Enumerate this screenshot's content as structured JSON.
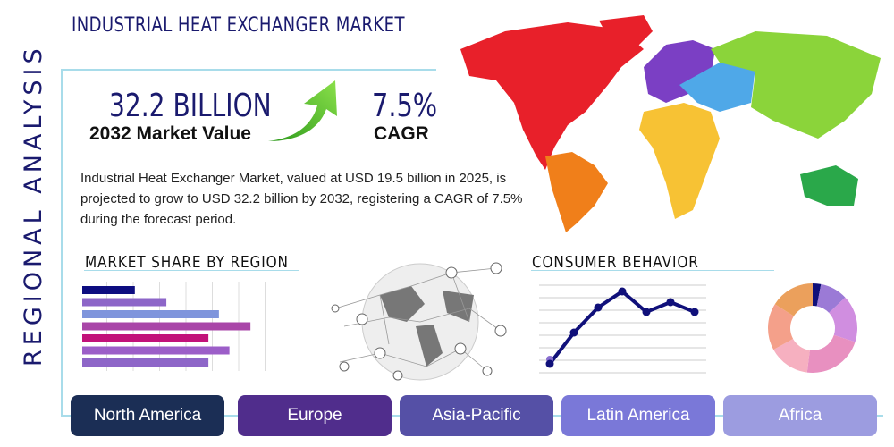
{
  "title": "INDUSTRIAL HEAT EXCHANGER MARKET",
  "side_label": "REGIONAL ANALYSIS",
  "market_value": {
    "value": "32.2 BILLION",
    "label": "2032 Market Value"
  },
  "cagr": {
    "value": "7.5%",
    "label": "CAGR"
  },
  "description": "Industrial Heat Exchanger Market, valued at USD 19.5 billion in 2025, is projected to grow to USD 32.2 billion by 2032, registering a CAGR of 7.5% during the forecast period.",
  "market_share": {
    "heading": "MARKET SHARE BY REGION",
    "bar_levels": [
      0.3,
      0.48,
      0.78,
      0.96,
      0.72,
      0.84,
      0.72
    ],
    "colors": [
      "#0d0d80",
      "#8d66c8",
      "#7f95dc",
      "#a946a8",
      "#c2127a",
      "#9c5ec8",
      "#8e66c8"
    ]
  },
  "consumer_behavior": {
    "heading": "CONSUMER BEHAVIOR",
    "line_levels": [
      0.1,
      0.45,
      0.73,
      0.91,
      0.68,
      0.79,
      0.68
    ],
    "donut_shares": [
      3,
      10,
      17,
      22,
      15,
      17,
      16
    ],
    "donut_colors": [
      "#10107a",
      "#9b7ad6",
      "#d08ee0",
      "#e890c0",
      "#f6b0c0",
      "#f4a08a",
      "#eba05c"
    ]
  },
  "regions": [
    {
      "label": "North America",
      "color": "#1b2e55"
    },
    {
      "label": "Europe",
      "color": "#502d8c"
    },
    {
      "label": "Asia-Pacific",
      "color": "#5550a6"
    },
    {
      "label": "Latin America",
      "color": "#7a78d8"
    },
    {
      "label": "Africa",
      "color": "#9c9ce0"
    }
  ],
  "map_colors": {
    "north_america": "#e8202a",
    "south_america": "#f07f1a",
    "europe": "#7b3fc4",
    "asia": "#8bd43a",
    "middle_east": "#4fa8e8",
    "africa": "#f7c234",
    "oceania": "#2aa84a"
  }
}
